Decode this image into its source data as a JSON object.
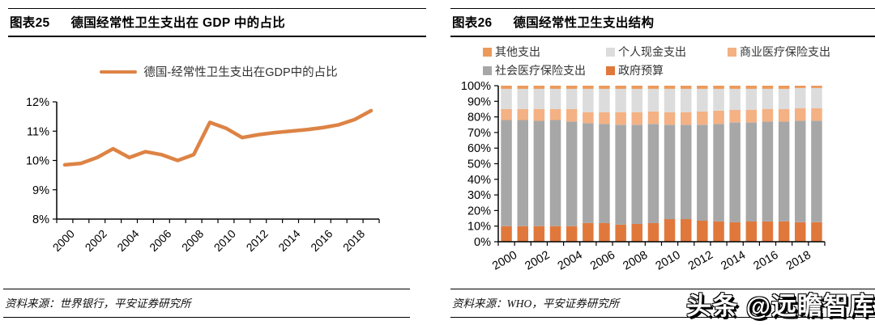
{
  "panels": [
    {
      "title_label": "图表25",
      "title": "德国经常性卫生支出在 GDP 中的占比",
      "source": "资料来源：世界银行，平安证券研究所"
    },
    {
      "title_label": "图表26",
      "title": "德国经常性卫生支出结构",
      "source": "资料来源：WHO，平安证券研究所"
    }
  ],
  "watermark": "头条 @远瞻智库",
  "chart_data": [
    {
      "type": "line",
      "title": "德国经常性卫生支出在 GDP 中的占比",
      "legend_label": "德国-经常性卫生支出在GDP中的占比",
      "legend_position": "top",
      "x": [
        2000,
        2001,
        2002,
        2003,
        2004,
        2005,
        2006,
        2007,
        2008,
        2009,
        2010,
        2011,
        2012,
        2013,
        2014,
        2015,
        2016,
        2017,
        2018,
        2019
      ],
      "values": [
        9.85,
        9.9,
        10.1,
        10.4,
        10.1,
        10.3,
        10.2,
        10.0,
        10.2,
        11.3,
        11.1,
        10.78,
        10.88,
        10.95,
        11.0,
        11.05,
        11.12,
        11.22,
        11.4,
        11.7
      ],
      "ylim": [
        8,
        12
      ],
      "ytick_step": 1,
      "ytick_suffix": "%",
      "xtick_label_every": 2,
      "grid": false,
      "line_color": "#DD8345"
    },
    {
      "type": "bar",
      "subtype": "stacked-100",
      "title": "德国经常性卫生支出结构",
      "categories": [
        2000,
        2001,
        2002,
        2003,
        2004,
        2005,
        2006,
        2007,
        2008,
        2009,
        2010,
        2011,
        2012,
        2013,
        2014,
        2015,
        2016,
        2017,
        2018,
        2019
      ],
      "series": [
        {
          "name": "政府预算",
          "color": "#E0783C",
          "values": [
            10,
            10,
            10,
            10,
            10,
            12,
            12,
            11,
            11.5,
            12,
            14.5,
            14.5,
            13.5,
            13,
            12.5,
            13,
            13,
            13,
            12.5,
            12.5
          ]
        },
        {
          "name": "社会医疗保险支出",
          "color": "#A7A7A7",
          "values": [
            68,
            68,
            67.5,
            68,
            67,
            64,
            63.5,
            64,
            63.5,
            63.5,
            60.5,
            60.5,
            61.5,
            62.5,
            64,
            63.5,
            64,
            64,
            65,
            65
          ]
        },
        {
          "name": "商业医疗保险支出",
          "color": "#F4B183",
          "values": [
            7,
            7,
            7.5,
            7,
            8,
            7,
            7.5,
            8,
            8,
            8,
            8,
            8,
            8.5,
            8.5,
            8,
            8,
            8,
            8,
            8,
            8
          ]
        },
        {
          "name": "个人现金支出",
          "color": "#DCDCDC",
          "values": [
            13,
            13,
            13,
            13,
            13,
            15,
            15,
            15,
            15,
            14.5,
            15,
            15,
            14.5,
            14,
            13.5,
            13.5,
            13,
            13,
            13,
            13
          ]
        },
        {
          "name": "其他支出",
          "color": "#EC9A5C",
          "values": [
            2,
            2,
            2,
            2,
            2,
            2,
            2,
            2,
            2,
            2,
            2,
            2,
            2,
            2,
            2,
            2,
            2,
            2,
            1.5,
            1.5
          ]
        }
      ],
      "legend_order": [
        "其他支出",
        "个人现金支出",
        "商业医疗保险支出",
        "社会医疗保险支出",
        "政府预算"
      ],
      "legend_position": "top",
      "ylim": [
        0,
        100
      ],
      "ytick_step": 10,
      "ytick_suffix": "%",
      "xtick_label_every": 2,
      "grid": false
    }
  ]
}
